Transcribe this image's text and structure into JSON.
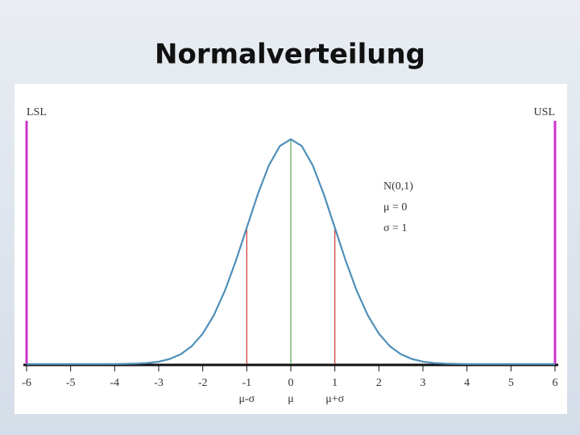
{
  "title": "Normalverteilung",
  "chart_data": {
    "type": "line",
    "x": [
      -6,
      -5.75,
      -5.5,
      -5.25,
      -5,
      -4.75,
      -4.5,
      -4.25,
      -4,
      -3.75,
      -3.5,
      -3.25,
      -3,
      -2.75,
      -2.5,
      -2.25,
      -2,
      -1.75,
      -1.5,
      -1.25,
      -1,
      -0.75,
      -0.5,
      -0.25,
      0,
      0.25,
      0.5,
      0.75,
      1,
      1.25,
      1.5,
      1.75,
      2,
      2.25,
      2.5,
      2.75,
      3,
      3.25,
      3.5,
      3.75,
      4,
      4.25,
      4.5,
      4.75,
      5,
      5.25,
      5.5,
      5.75,
      6
    ],
    "series": [
      {
        "color": "#4f8fb8",
        "values": [
          0,
          0,
          0,
          0,
          0,
          0,
          0,
          0,
          0.0001,
          0.0004,
          0.0009,
          0.002,
          0.0044,
          0.0091,
          0.0175,
          0.0317,
          0.054,
          0.0863,
          0.1295,
          0.1826,
          0.242,
          0.3011,
          0.3521,
          0.3867,
          0.3989,
          0.3867,
          0.3521,
          0.3011,
          0.242,
          0.1826,
          0.1295,
          0.0863,
          0.054,
          0.0317,
          0.0175,
          0.0091,
          0.0044,
          0.002,
          0.0009,
          0.0004,
          0.0001,
          0,
          0,
          0,
          0,
          0,
          0,
          0,
          0
        ]
      }
    ],
    "xlim": [
      -6,
      6
    ],
    "ylim": [
      0,
      0.4
    ],
    "xticks": [
      -6,
      -5,
      -4,
      -3,
      -2,
      -1,
      0,
      1,
      2,
      3,
      4,
      5,
      6
    ],
    "limit_lines": [
      {
        "x": -6,
        "label": "LSL",
        "color": "#cc33cc"
      },
      {
        "x": 6,
        "label": "USL",
        "color": "#cc33cc"
      }
    ],
    "sigma_lines": [
      {
        "x": -1,
        "label": "μ-σ",
        "color": "#cc3333"
      },
      {
        "x": 0,
        "label": "μ",
        "color": "#55aa55"
      },
      {
        "x": 1,
        "label": "μ+σ",
        "color": "#cc3333"
      }
    ],
    "legend_text": [
      "N(0,1)",
      "μ = 0",
      "σ = 1"
    ]
  }
}
